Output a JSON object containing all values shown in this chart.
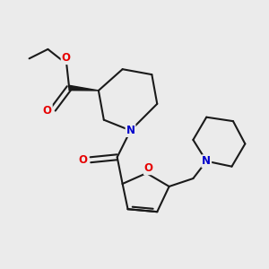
{
  "background_color": "#ebebeb",
  "bond_color": "#1a1a1a",
  "atom_colors": {
    "O": "#e60000",
    "N": "#0000cc",
    "C": "#1a1a1a"
  },
  "bond_width": 1.5,
  "font_size_atoms": 8.5,
  "figsize": [
    3.0,
    3.0
  ],
  "dpi": 100
}
